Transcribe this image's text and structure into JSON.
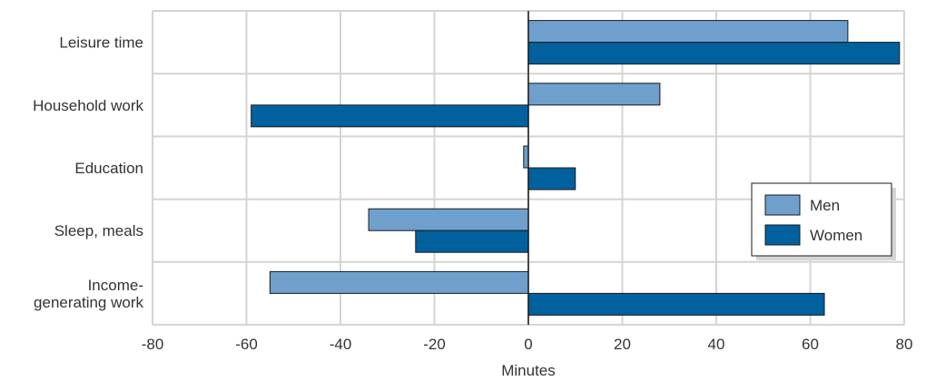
{
  "chart_data": {
    "type": "bar",
    "orientation": "horizontal",
    "categories": [
      [
        "Leisure time"
      ],
      [
        "Household work"
      ],
      [
        "Education"
      ],
      [
        "Sleep, meals"
      ],
      [
        "Income-",
        "generating work"
      ]
    ],
    "series": [
      {
        "name": "Men",
        "color": "#6e9fcd",
        "values": [
          68,
          28,
          -1,
          -34,
          -55
        ]
      },
      {
        "name": "Women",
        "color": "#00619e",
        "values": [
          79,
          -59,
          10,
          -24,
          63
        ]
      }
    ],
    "xlabel": "Minutes",
    "xlim": [
      -80,
      80
    ],
    "xticks": [
      -80,
      -60,
      -40,
      -20,
      0,
      20,
      40,
      60,
      80
    ],
    "grid": true,
    "legend_position": "lower-right"
  }
}
